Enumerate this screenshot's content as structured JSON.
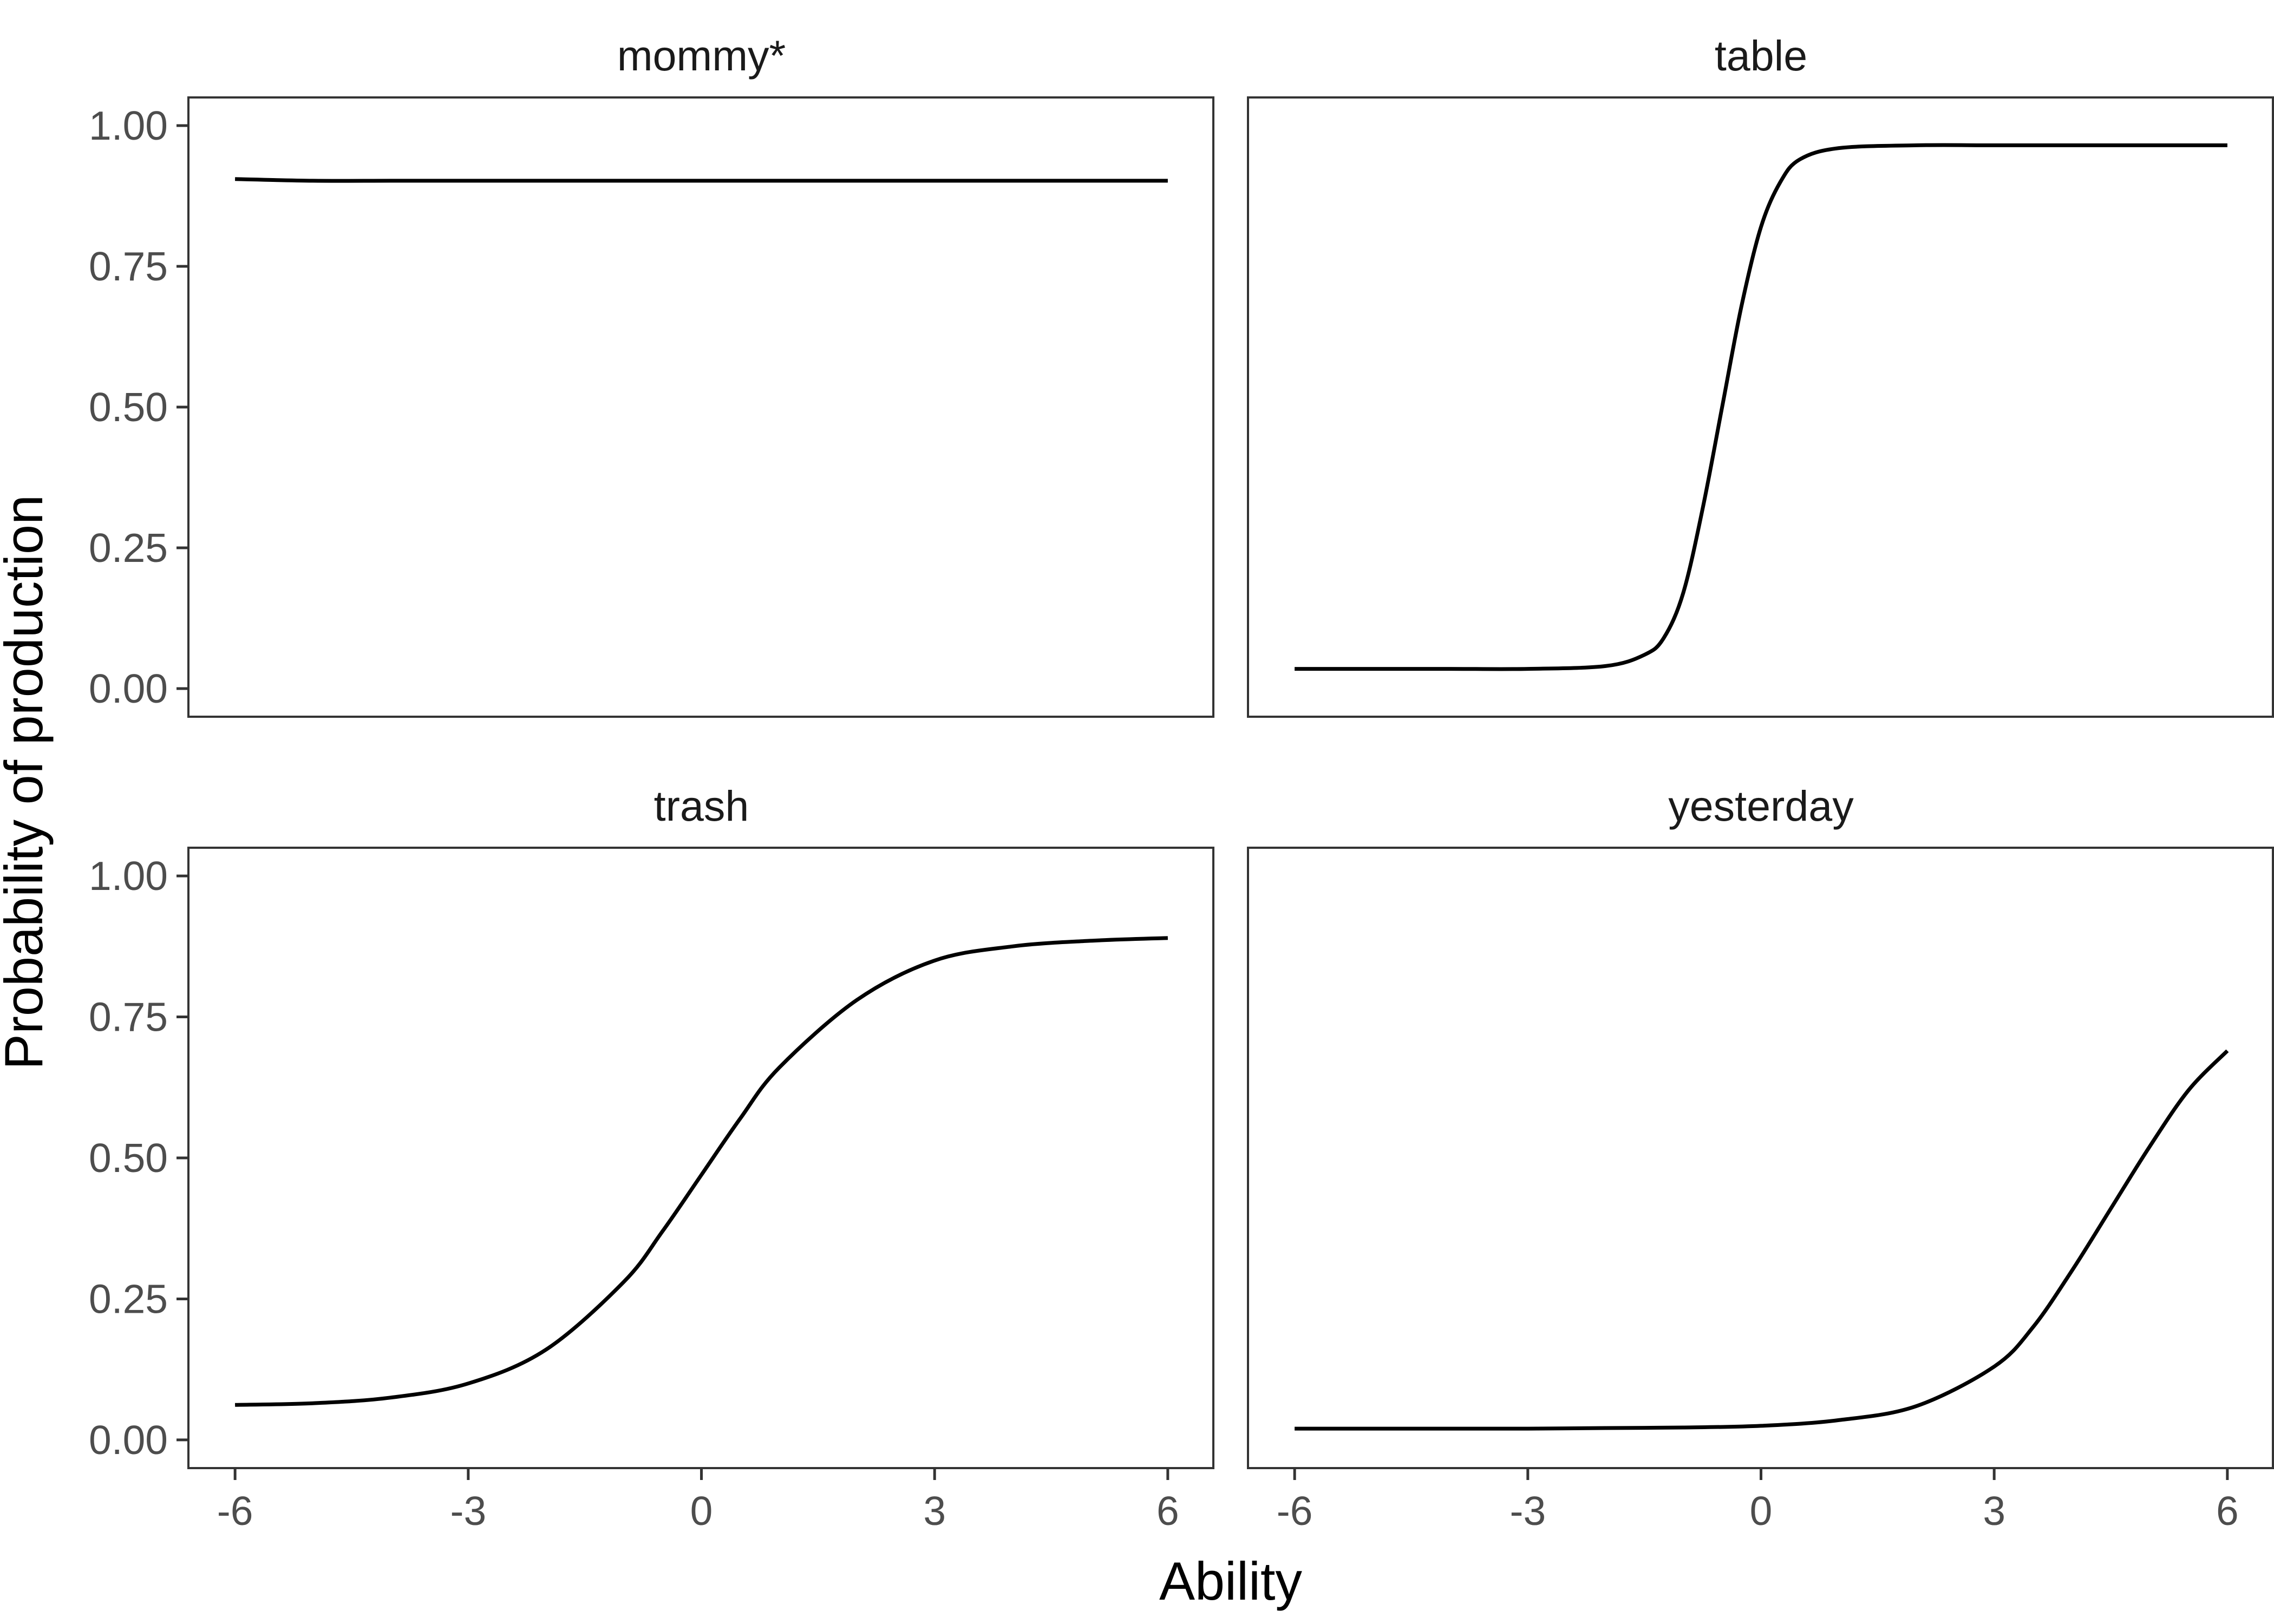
{
  "chart_data": {
    "type": "line",
    "xlabel": "Ability",
    "ylabel": "Probability of production",
    "xlim": [
      -6.6,
      6.6
    ],
    "ylim": [
      -0.05,
      1.05
    ],
    "xticks": [
      -6,
      -3,
      0,
      3,
      6
    ],
    "xtick_labels": [
      "-6",
      "-3",
      "0",
      "3",
      "6"
    ],
    "yticks": [
      0,
      0.25,
      0.5,
      0.75,
      1
    ],
    "ytick_labels": [
      "0.00",
      "0.25",
      "0.50",
      "0.75",
      "1.00"
    ],
    "grid": false,
    "line_color": "#000000",
    "panels": [
      {
        "title": "mommy*",
        "x": [
          -6,
          -5,
          -4,
          -3,
          -2,
          -1,
          0,
          1,
          2,
          3,
          4,
          5,
          6
        ],
        "y": [
          0.905,
          0.902,
          0.902,
          0.902,
          0.902,
          0.902,
          0.902,
          0.902,
          0.902,
          0.902,
          0.902,
          0.902,
          0.902
        ]
      },
      {
        "title": "table",
        "x": [
          -6,
          -5,
          -4,
          -3,
          -2,
          -1.5,
          -1.25,
          -1,
          -0.75,
          -0.5,
          -0.25,
          0,
          0.25,
          0.5,
          1,
          2,
          3,
          4,
          5,
          6
        ],
        "y": [
          0.035,
          0.035,
          0.035,
          0.035,
          0.04,
          0.06,
          0.09,
          0.17,
          0.32,
          0.5,
          0.68,
          0.82,
          0.9,
          0.94,
          0.96,
          0.965,
          0.965,
          0.965,
          0.965,
          0.965
        ]
      },
      {
        "title": "trash",
        "x": [
          -6,
          -5,
          -4,
          -3,
          -2,
          -1,
          -0.5,
          0,
          0.5,
          1,
          2,
          3,
          4,
          5,
          6
        ],
        "y": [
          0.062,
          0.065,
          0.075,
          0.1,
          0.16,
          0.28,
          0.37,
          0.47,
          0.57,
          0.66,
          0.78,
          0.85,
          0.875,
          0.885,
          0.89
        ]
      },
      {
        "title": "yesterday",
        "x": [
          -6,
          -5,
          -4,
          -3,
          -2,
          -1,
          0,
          1,
          2,
          3,
          3.5,
          4,
          4.5,
          5,
          5.5,
          6
        ],
        "y": [
          0.02,
          0.02,
          0.02,
          0.02,
          0.021,
          0.022,
          0.025,
          0.035,
          0.06,
          0.13,
          0.2,
          0.3,
          0.41,
          0.52,
          0.62,
          0.69
        ]
      }
    ]
  }
}
